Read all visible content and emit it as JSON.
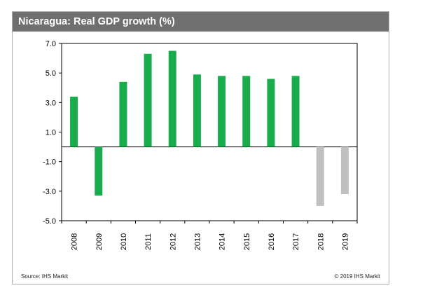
{
  "header": {
    "title": "Nicaragua: Real GDP growth (%)",
    "title_bar_color": "#6f6f6f"
  },
  "footer": {
    "source": "Source:  IHS Markit",
    "copyright": "© 2019 IHS Markit"
  },
  "chart_data": {
    "type": "bar",
    "title": "Nicaragua: Real GDP growth (%)",
    "xlabel": "",
    "ylabel": "",
    "categories": [
      "2008",
      "2009",
      "2010",
      "2011",
      "2012",
      "2013",
      "2014",
      "2015",
      "2016",
      "2017",
      "2018",
      "2019"
    ],
    "values": [
      3.4,
      -3.3,
      4.4,
      6.3,
      6.5,
      4.9,
      4.8,
      4.8,
      4.6,
      4.8,
      -4.0,
      -3.2
    ],
    "forecast_from_index": 10,
    "colors": {
      "actual": "#1aab4f",
      "forecast": "#c0c0c0",
      "axis": "#000000",
      "plot_border": "#000000"
    },
    "ylim": [
      -5.0,
      7.0
    ],
    "yticks": [
      "7.0",
      "5.0",
      "3.0",
      "1.0",
      "-1.0",
      "-3.0",
      "-5.0"
    ],
    "grid": false,
    "legend": "none"
  }
}
